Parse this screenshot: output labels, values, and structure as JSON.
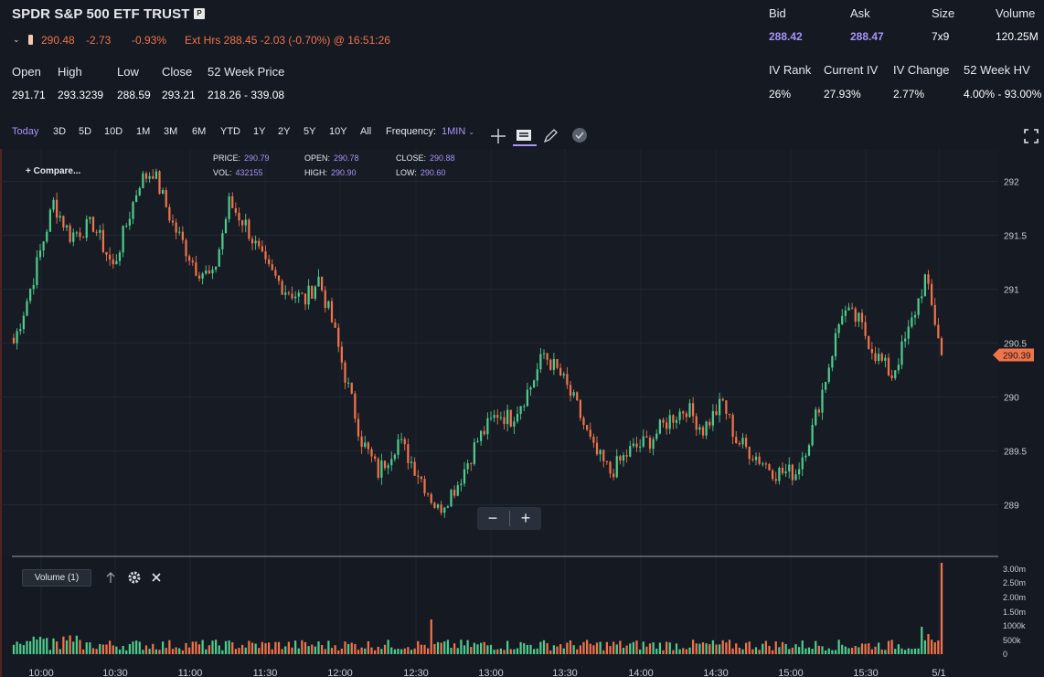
{
  "header": {
    "title": "SPDR S&P 500 ETF TRUST",
    "badge": "P",
    "last": "290.48",
    "change": "-2.73",
    "change_pct": "-0.93%",
    "ext_hours": "Ext Hrs 288.45 -2.03 (-0.70%) @ 16:51:26"
  },
  "stats_left": [
    {
      "label": "Open",
      "value": "291.71"
    },
    {
      "label": "High",
      "value": "293.3239"
    },
    {
      "label": "Low",
      "value": "288.59"
    },
    {
      "label": "Close",
      "value": "293.21"
    },
    {
      "label": "52 Week Price",
      "value": "218.26 - 339.08"
    }
  ],
  "quote_right": [
    {
      "label": "Bid",
      "value": "288.42"
    },
    {
      "label": "Ask",
      "value": "288.47"
    },
    {
      "label": "Size",
      "value": "7x9"
    },
    {
      "label": "Volume",
      "value": "120.25M"
    }
  ],
  "iv_right": [
    {
      "label": "IV Rank",
      "value": "26%"
    },
    {
      "label": "Current IV",
      "value": "27.93%"
    },
    {
      "label": "IV Change",
      "value": "2.77%"
    },
    {
      "label": "52 Week HV",
      "value": "4.00% - 93.00%"
    }
  ],
  "toolbar": {
    "ranges": [
      "Today",
      "3D",
      "5D",
      "10D",
      "1M",
      "3M",
      "6M",
      "YTD",
      "1Y",
      "2Y",
      "5Y",
      "10Y",
      "All"
    ],
    "active_range": "Today",
    "frequency_label": "Frequency:",
    "frequency_value": "1MIN",
    "icons": [
      "crosshair-icon",
      "comment-icon",
      "pencil-icon",
      "check-badge-icon",
      "fullscreen-icon"
    ]
  },
  "chart_overlay": {
    "compare": "+ Compare...",
    "price_label": "PRICE:",
    "price": "290.79",
    "open_label": "OPEN:",
    "open": "290.78",
    "close_label": "CLOSE:",
    "close": "290.88",
    "vol_label": "VOL:",
    "vol": "432155",
    "high_label": "HIGH:",
    "high": "290.90",
    "low_label": "LOW:",
    "low": "290.60",
    "last_price_tag": "290.39"
  },
  "volume_panel": {
    "label": "Volume (1)",
    "y_ticks": [
      "3.00m",
      "2.50m",
      "2.00m",
      "1.50m",
      "1000k",
      "500k",
      "0"
    ]
  },
  "colors": {
    "up": "#4ecb8d",
    "down": "#f0734a",
    "accent": "#a993f7",
    "bg": "#141922"
  },
  "chart_data": {
    "type": "candlestick",
    "x_ticks": [
      "10:00",
      "10:30",
      "11:00",
      "11:30",
      "12:00",
      "12:30",
      "13:00",
      "13:30",
      "14:00",
      "14:30",
      "15:00",
      "15:30",
      "5/1"
    ],
    "y_ticks": [
      "292",
      "291.5",
      "291",
      "290.5",
      "290",
      "289.5",
      "289"
    ],
    "ylim": [
      288.6,
      292.4
    ],
    "keypoints": [
      [
        0,
        290.5
      ],
      [
        5,
        291
      ],
      [
        12,
        291.8
      ],
      [
        17,
        291.5
      ],
      [
        24,
        291.6
      ],
      [
        30,
        291.2
      ],
      [
        38,
        292
      ],
      [
        42,
        292.1
      ],
      [
        48,
        291.6
      ],
      [
        55,
        291.2
      ],
      [
        60,
        291.1
      ],
      [
        65,
        291.8
      ],
      [
        70,
        291.6
      ],
      [
        76,
        291.2
      ],
      [
        82,
        291
      ],
      [
        88,
        290.9
      ],
      [
        92,
        291.1
      ],
      [
        96,
        290.7
      ],
      [
        100,
        290.2
      ],
      [
        105,
        289.6
      ],
      [
        110,
        289.3
      ],
      [
        116,
        289.6
      ],
      [
        122,
        289.3
      ],
      [
        128,
        288.95
      ],
      [
        134,
        289.2
      ],
      [
        140,
        289.6
      ],
      [
        146,
        289.85
      ],
      [
        150,
        289.8
      ],
      [
        156,
        290.1
      ],
      [
        160,
        290.4
      ],
      [
        165,
        290.2
      ],
      [
        170,
        289.9
      ],
      [
        175,
        289.5
      ],
      [
        180,
        289.3
      ],
      [
        186,
        289.5
      ],
      [
        192,
        289.6
      ],
      [
        198,
        289.8
      ],
      [
        203,
        289.9
      ],
      [
        208,
        289.7
      ],
      [
        214,
        289.95
      ],
      [
        218,
        289.6
      ],
      [
        224,
        289.45
      ],
      [
        230,
        289.3
      ],
      [
        236,
        289.3
      ],
      [
        241,
        289.7
      ],
      [
        246,
        290.3
      ],
      [
        250,
        290.8
      ],
      [
        255,
        290.7
      ],
      [
        260,
        290.4
      ],
      [
        265,
        290.2
      ],
      [
        270,
        290.6
      ],
      [
        275,
        291.1
      ],
      [
        278,
        290.7
      ],
      [
        280,
        290.45
      ]
    ],
    "last": 290.39
  }
}
